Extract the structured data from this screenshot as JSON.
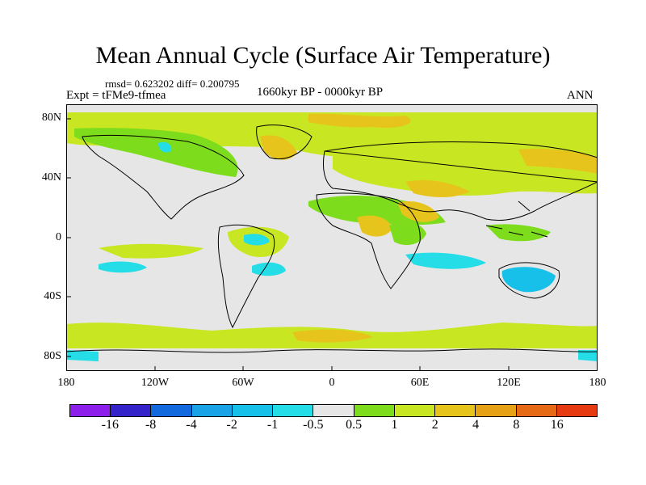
{
  "header": {
    "title": "Mean Annual Cycle (Surface Air Temperature)",
    "stats": "rmsd= 0.623202 diff= 0.200795",
    "experiment": "Expt = tFMe9-tfmea",
    "period": "1660kyr BP - 0000kyr BP",
    "season": "ANN"
  },
  "axes": {
    "y_ticks": [
      "80N",
      "40N",
      "0",
      "40S",
      "80S"
    ],
    "x_ticks": [
      "180",
      "120W",
      "60W",
      "0",
      "60E",
      "120E",
      "180"
    ]
  },
  "colorbar": {
    "colors": [
      "#8d1fea",
      "#3423c8",
      "#1268dd",
      "#19a3e6",
      "#16c0e8",
      "#24dde6",
      "#e6e6e6",
      "#7ddc1c",
      "#c8e622",
      "#e6c41c",
      "#e6a114",
      "#e66a16",
      "#e63a13"
    ],
    "labels": [
      "-16",
      "-8",
      "-4",
      "-2",
      "-1",
      "-0.5",
      "0.5",
      "1",
      "2",
      "4",
      "8",
      "16"
    ]
  },
  "map_colors": {
    "ocean_fill": "#e6e6e6",
    "land_fill": "#e6e6e6",
    "coast": "#000000",
    "warm1": "#7ddc1c",
    "warm2": "#c8e622",
    "warm3": "#e6c41c",
    "warm4": "#e6a114",
    "cool1": "#24dde6",
    "cool2": "#16c0e8"
  }
}
